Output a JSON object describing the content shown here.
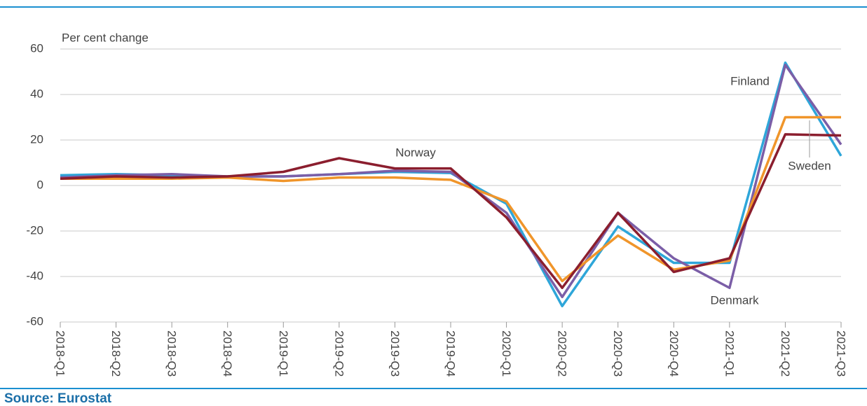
{
  "chart_data": {
    "type": "line",
    "y_label": "Per cent change",
    "source": "Source: Eurostat",
    "categories": [
      "2018-Q1",
      "2018-Q2",
      "2018-Q3",
      "2018-Q4",
      "2019-Q1",
      "2019-Q2",
      "2019-Q3",
      "2019-Q4",
      "2020-Q1",
      "2020-Q2",
      "2020-Q3",
      "2020-Q4",
      "2021-Q1",
      "2021-Q2",
      "2021-Q3"
    ],
    "series": [
      {
        "name": "Finland",
        "color": "#2ea6d9",
        "values": [
          4.5,
          5,
          4.5,
          4,
          4,
          5,
          6,
          5.5,
          -8,
          -53,
          -18,
          -34,
          -34,
          54,
          13
        ]
      },
      {
        "name": "Denmark",
        "color": "#7b5ea7",
        "values": [
          3.5,
          4.5,
          5,
          4,
          4,
          5,
          6.5,
          6,
          -12,
          -49,
          -12,
          -32,
          -45,
          53,
          18
        ]
      },
      {
        "name": "Sweden",
        "color": "#f0952a",
        "values": [
          3,
          3,
          3,
          3.5,
          2,
          3.5,
          3.5,
          2.5,
          -7,
          -42,
          -22,
          -37,
          -33,
          30,
          30
        ]
      },
      {
        "name": "Norway",
        "color": "#8b1e2e",
        "values": [
          3,
          4,
          3.5,
          4,
          6,
          12,
          7.5,
          7.5,
          -14,
          -45,
          -12,
          -38,
          -32,
          22.5,
          22
        ]
      }
    ],
    "ylim": [
      -60,
      60
    ],
    "yticks": [
      -60,
      -40,
      -20,
      0,
      20,
      40,
      60
    ],
    "grid": true
  }
}
